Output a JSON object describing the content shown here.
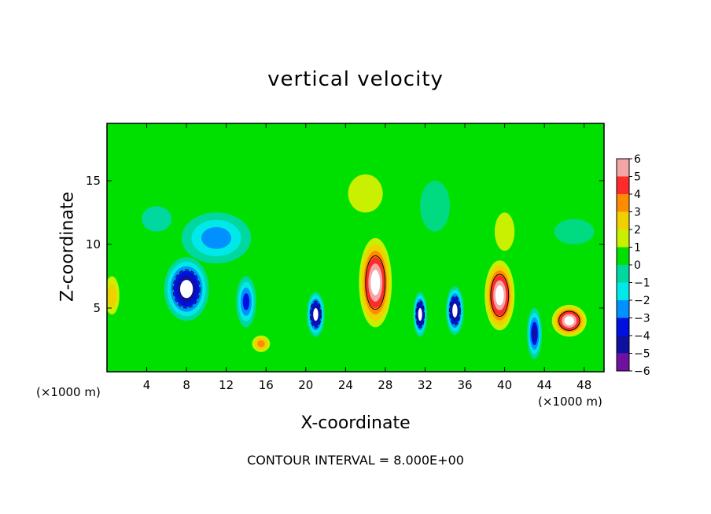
{
  "chart_data": {
    "type": "heatmap",
    "title": "vertical velocity",
    "xlabel": "X-coordinate",
    "ylabel": "Z-coordinate",
    "x_unit_label": "(×1000 m)",
    "xlim": [
      0,
      50
    ],
    "ylim": [
      0,
      19.5
    ],
    "x_ticks": [
      4,
      8,
      12,
      16,
      20,
      24,
      28,
      32,
      36,
      40,
      44,
      48
    ],
    "y_ticks": [
      5,
      10,
      15
    ],
    "colorbar": {
      "range": [
        -6,
        6
      ],
      "ticks": [
        6,
        5,
        4,
        3,
        2,
        1,
        0,
        -1,
        -2,
        -3,
        -4,
        -5,
        -6
      ],
      "colors": [
        "#f4a6a6",
        "#ff2a2a",
        "#ff8c00",
        "#f0d000",
        "#c8f000",
        "#00e000",
        "#00d8a0",
        "#00e8e8",
        "#0090ff",
        "#0010e0",
        "#1010a0",
        "#7010a0"
      ]
    },
    "footer": "CONTOUR INTERVAL = 8.000E+00",
    "features": [
      {
        "x": 8,
        "z": 6.5,
        "w": 4.5,
        "h": 5,
        "v": -8
      },
      {
        "x": 11,
        "z": 10.5,
        "w": 7,
        "h": 4,
        "v": -4
      },
      {
        "x": 5,
        "z": 12,
        "w": 3,
        "h": 2,
        "v": -2
      },
      {
        "x": 0.5,
        "z": 6,
        "w": 1.5,
        "h": 3,
        "v": 3
      },
      {
        "x": 15.5,
        "z": 2.2,
        "w": 1.8,
        "h": 1.3,
        "v": 4
      },
      {
        "x": 14,
        "z": 5.5,
        "w": 2,
        "h": 4,
        "v": -5
      },
      {
        "x": 21,
        "z": 4.5,
        "w": 1.8,
        "h": 3.5,
        "v": -8
      },
      {
        "x": 27,
        "z": 7,
        "w": 3.3,
        "h": 7,
        "v": 10
      },
      {
        "x": 26,
        "z": 14,
        "w": 3.5,
        "h": 3,
        "v": 2
      },
      {
        "x": 31.5,
        "z": 4.5,
        "w": 1.4,
        "h": 3.5,
        "v": -8
      },
      {
        "x": 35,
        "z": 4.8,
        "w": 1.8,
        "h": 3.8,
        "v": -8
      },
      {
        "x": 33,
        "z": 13,
        "w": 3,
        "h": 4,
        "v": -1
      },
      {
        "x": 39.5,
        "z": 6,
        "w": 3,
        "h": 5.5,
        "v": 10
      },
      {
        "x": 40,
        "z": 11,
        "w": 2,
        "h": 3,
        "v": 2
      },
      {
        "x": 43,
        "z": 3,
        "w": 1.5,
        "h": 4,
        "v": -6
      },
      {
        "x": 46.5,
        "z": 4,
        "w": 3.5,
        "h": 2.5,
        "v": 7
      },
      {
        "x": 47,
        "z": 11,
        "w": 4,
        "h": 2,
        "v": -0.5
      }
    ]
  }
}
